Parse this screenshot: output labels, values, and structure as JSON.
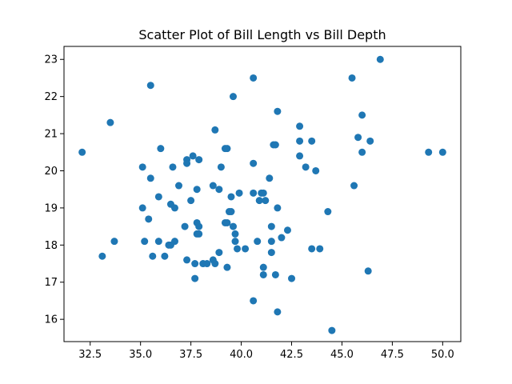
{
  "chart_data": {
    "type": "scatter",
    "title": "Scatter Plot of Bill Length vs Bill Depth",
    "xlabel": "",
    "ylabel": "",
    "xlim": [
      31.2,
      50.9
    ],
    "ylim": [
      15.4,
      23.35
    ],
    "x_ticks": [
      32.5,
      35.0,
      37.5,
      40.0,
      42.5,
      45.0,
      47.5,
      50.0
    ],
    "x_tick_labels": [
      "32.5",
      "35.0",
      "37.5",
      "40.0",
      "42.5",
      "45.0",
      "47.5",
      "50.0"
    ],
    "y_ticks": [
      16,
      17,
      18,
      19,
      20,
      21,
      22,
      23
    ],
    "y_tick_labels": [
      "16",
      "17",
      "18",
      "19",
      "20",
      "21",
      "22",
      "23"
    ],
    "grid": false,
    "marker_color": "#1f77b4",
    "points": [
      {
        "x": 32.1,
        "y": 20.5
      },
      {
        "x": 33.1,
        "y": 17.7
      },
      {
        "x": 33.5,
        "y": 21.3
      },
      {
        "x": 33.7,
        "y": 18.1
      },
      {
        "x": 35.1,
        "y": 20.1
      },
      {
        "x": 35.1,
        "y": 19.0
      },
      {
        "x": 35.2,
        "y": 18.1
      },
      {
        "x": 35.4,
        "y": 18.7
      },
      {
        "x": 35.5,
        "y": 22.3
      },
      {
        "x": 35.5,
        "y": 19.8
      },
      {
        "x": 35.6,
        "y": 17.7
      },
      {
        "x": 35.9,
        "y": 19.3
      },
      {
        "x": 35.9,
        "y": 18.1
      },
      {
        "x": 36.0,
        "y": 20.6
      },
      {
        "x": 36.2,
        "y": 17.7
      },
      {
        "x": 36.4,
        "y": 18.0
      },
      {
        "x": 36.5,
        "y": 19.1
      },
      {
        "x": 36.5,
        "y": 18.0
      },
      {
        "x": 36.6,
        "y": 20.1
      },
      {
        "x": 36.7,
        "y": 18.1
      },
      {
        "x": 36.7,
        "y": 19.0
      },
      {
        "x": 36.9,
        "y": 19.6
      },
      {
        "x": 37.2,
        "y": 18.5
      },
      {
        "x": 37.3,
        "y": 20.3
      },
      {
        "x": 37.3,
        "y": 20.2
      },
      {
        "x": 37.3,
        "y": 17.6
      },
      {
        "x": 37.5,
        "y": 19.2
      },
      {
        "x": 37.6,
        "y": 20.4
      },
      {
        "x": 37.7,
        "y": 17.5
      },
      {
        "x": 37.7,
        "y": 17.1
      },
      {
        "x": 37.8,
        "y": 19.5
      },
      {
        "x": 37.8,
        "y": 18.6
      },
      {
        "x": 37.8,
        "y": 18.3
      },
      {
        "x": 37.9,
        "y": 18.5
      },
      {
        "x": 37.9,
        "y": 20.3
      },
      {
        "x": 37.9,
        "y": 18.3
      },
      {
        "x": 38.1,
        "y": 17.5
      },
      {
        "x": 38.3,
        "y": 17.5
      },
      {
        "x": 38.6,
        "y": 19.6
      },
      {
        "x": 38.6,
        "y": 17.6
      },
      {
        "x": 38.7,
        "y": 21.1
      },
      {
        "x": 38.7,
        "y": 17.5
      },
      {
        "x": 38.9,
        "y": 19.5
      },
      {
        "x": 38.9,
        "y": 17.8
      },
      {
        "x": 39.0,
        "y": 20.1
      },
      {
        "x": 39.2,
        "y": 20.6
      },
      {
        "x": 39.2,
        "y": 18.6
      },
      {
        "x": 39.3,
        "y": 20.6
      },
      {
        "x": 39.3,
        "y": 18.6
      },
      {
        "x": 39.3,
        "y": 17.4
      },
      {
        "x": 39.4,
        "y": 18.9
      },
      {
        "x": 39.5,
        "y": 19.3
      },
      {
        "x": 39.5,
        "y": 18.9
      },
      {
        "x": 39.6,
        "y": 22.0
      },
      {
        "x": 39.6,
        "y": 18.5
      },
      {
        "x": 39.7,
        "y": 18.3
      },
      {
        "x": 39.7,
        "y": 18.1
      },
      {
        "x": 39.8,
        "y": 17.9
      },
      {
        "x": 39.9,
        "y": 19.4
      },
      {
        "x": 40.2,
        "y": 17.9
      },
      {
        "x": 40.6,
        "y": 22.5
      },
      {
        "x": 40.6,
        "y": 20.2
      },
      {
        "x": 40.6,
        "y": 19.4
      },
      {
        "x": 40.6,
        "y": 16.5
      },
      {
        "x": 40.8,
        "y": 18.1
      },
      {
        "x": 40.9,
        "y": 19.2
      },
      {
        "x": 41.0,
        "y": 19.4
      },
      {
        "x": 41.1,
        "y": 19.4
      },
      {
        "x": 41.1,
        "y": 17.4
      },
      {
        "x": 41.1,
        "y": 17.2
      },
      {
        "x": 41.2,
        "y": 19.2
      },
      {
        "x": 41.4,
        "y": 19.8
      },
      {
        "x": 41.5,
        "y": 18.5
      },
      {
        "x": 41.5,
        "y": 18.1
      },
      {
        "x": 41.5,
        "y": 17.8
      },
      {
        "x": 41.6,
        "y": 20.7
      },
      {
        "x": 41.7,
        "y": 20.7
      },
      {
        "x": 41.7,
        "y": 17.2
      },
      {
        "x": 41.8,
        "y": 21.6
      },
      {
        "x": 41.8,
        "y": 19.0
      },
      {
        "x": 41.8,
        "y": 16.2
      },
      {
        "x": 42.0,
        "y": 18.2
      },
      {
        "x": 42.3,
        "y": 18.4
      },
      {
        "x": 42.5,
        "y": 17.1
      },
      {
        "x": 42.9,
        "y": 21.2
      },
      {
        "x": 42.9,
        "y": 20.8
      },
      {
        "x": 42.9,
        "y": 20.4
      },
      {
        "x": 43.2,
        "y": 20.1
      },
      {
        "x": 43.5,
        "y": 20.8
      },
      {
        "x": 43.5,
        "y": 17.9
      },
      {
        "x": 43.7,
        "y": 20.0
      },
      {
        "x": 43.9,
        "y": 17.9
      },
      {
        "x": 44.3,
        "y": 18.9
      },
      {
        "x": 44.5,
        "y": 15.7
      },
      {
        "x": 45.5,
        "y": 22.5
      },
      {
        "x": 45.6,
        "y": 19.6
      },
      {
        "x": 45.8,
        "y": 20.9
      },
      {
        "x": 46.0,
        "y": 21.5
      },
      {
        "x": 46.0,
        "y": 20.5
      },
      {
        "x": 46.3,
        "y": 17.3
      },
      {
        "x": 46.4,
        "y": 20.8
      },
      {
        "x": 46.9,
        "y": 23.0
      },
      {
        "x": 49.3,
        "y": 20.5
      },
      {
        "x": 50.0,
        "y": 20.5
      }
    ]
  }
}
